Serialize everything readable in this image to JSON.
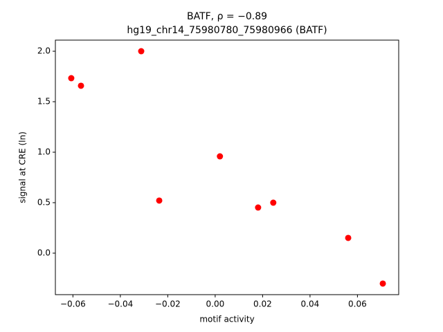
{
  "chart_data": {
    "type": "scatter",
    "title": "BATF, ρ = −0.89",
    "subtitle": "hg19_chr14_75980780_75980966 (BATF)",
    "x_label": "motif activity",
    "y_label": "signal at CRE (ln)",
    "color": "#ff0000",
    "x": [
      -0.0607,
      -0.0566,
      -0.0312,
      -0.0236,
      0.002,
      0.0181,
      0.0245,
      0.0561,
      0.0707
    ],
    "values": [
      1.733,
      1.658,
      2.0,
      0.521,
      0.959,
      0.452,
      0.5,
      0.151,
      -0.301
    ],
    "xlim": [
      -0.0674,
      0.0774
    ],
    "ylim": [
      -0.411,
      2.11
    ],
    "xticks": [
      {
        "value": -0.06,
        "label": "−0.06"
      },
      {
        "value": -0.04,
        "label": "−0.04"
      },
      {
        "value": -0.02,
        "label": "−0.02"
      },
      {
        "value": 0,
        "label": "0.00"
      },
      {
        "value": 0.02,
        "label": "0.02"
      },
      {
        "value": 0.04,
        "label": "0.04"
      },
      {
        "value": 0.06,
        "label": "0.06"
      }
    ],
    "yticks": [
      {
        "value": 0,
        "label": "0.0"
      },
      0.5,
      {
        "value": 1,
        "label": "1.0"
      },
      1.5,
      {
        "value": 2,
        "label": "2.0"
      }
    ]
  }
}
